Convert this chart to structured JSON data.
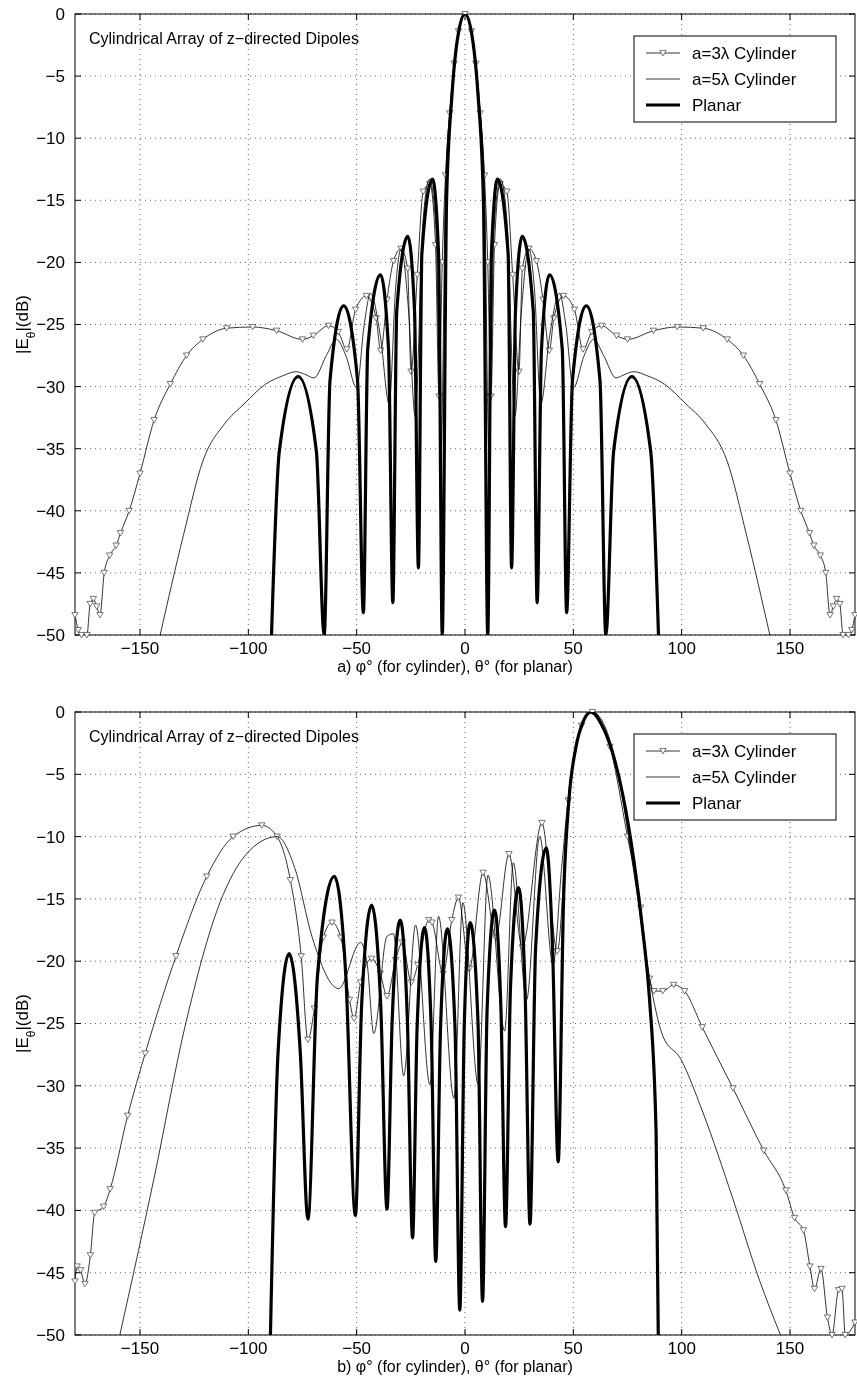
{
  "chart_data": [
    {
      "type": "line",
      "title": "Cylindrical Array of z−directed Dipoles",
      "xlabel": "a) φ° (for cylinder), θ° (for planar)",
      "ylabel": "|E$_{θ}$|(dB)",
      "xlim": [
        -180,
        180
      ],
      "ylim": [
        -50,
        0
      ],
      "xticks": [
        -150,
        -100,
        -50,
        0,
        50,
        100,
        150
      ],
      "yticks": [
        -50,
        -45,
        -40,
        -35,
        -30,
        -25,
        -20,
        -15,
        -10,
        -5,
        0
      ],
      "grid": true,
      "legend": "top right",
      "line_style": "solid",
      "series": [
        {
          "name": "a=3λ Cylinder",
          "color": "#000000",
          "marker": "triangle",
          "x": [
            -180,
            -178.5,
            -177,
            -174.5,
            -173,
            -171.5,
            -170,
            -168.5,
            -166.5,
            -164,
            -161,
            -159,
            -155,
            -150,
            -143.5,
            -136,
            -128.5,
            -121,
            -110,
            -98,
            -87,
            -75,
            -70,
            -63,
            -58.5,
            -54.5,
            -50.5,
            -45.5,
            -41,
            -38.9,
            -36,
            -33,
            -29.5,
            -26.5,
            -24.9,
            -22,
            -19.3,
            -16.2,
            -13.6,
            -12,
            -10.5,
            -9,
            -7,
            -5,
            -3,
            0,
            3,
            5,
            7,
            9,
            10.5,
            12,
            13.6,
            16.2,
            19.3,
            22,
            24.9,
            26.5,
            29.5,
            33,
            36,
            38.9,
            41,
            45.5,
            50.5,
            54.5,
            58.5,
            63,
            70,
            75,
            87,
            98,
            110,
            121,
            128.5,
            136,
            143.5,
            150,
            155,
            159,
            161,
            164,
            166.5,
            168.5,
            170,
            171.5,
            173,
            174.5,
            177,
            178.5,
            180
          ],
          "values": [
            -48.4,
            -49.6,
            -50,
            -50,
            -47.5,
            -47.1,
            -47.7,
            -48.4,
            -45,
            -43.6,
            -42.8,
            -41.8,
            -40,
            -37,
            -32.7,
            -29.8,
            -27.5,
            -26.2,
            -25.3,
            -25.2,
            -25.5,
            -26.2,
            -25.9,
            -25.1,
            -25.6,
            -27,
            -23.8,
            -22.7,
            -24.5,
            -27.1,
            -23,
            -19.9,
            -18.9,
            -20.5,
            -28.8,
            -21,
            -14.3,
            -13.7,
            -18.6,
            -30.8,
            -20,
            -13,
            -8,
            -4,
            -1.4,
            0,
            -1.4,
            -4,
            -8,
            -13,
            -20,
            -30.8,
            -18.6,
            -13.7,
            -14.3,
            -21,
            -28.8,
            -20.5,
            -18.9,
            -19.9,
            -23,
            -27.1,
            -24.5,
            -22.7,
            -23.8,
            -27,
            -25.6,
            -25.1,
            -25.9,
            -26.2,
            -25.5,
            -25.2,
            -25.3,
            -26.2,
            -27.5,
            -29.8,
            -32.7,
            -37,
            -40,
            -41.8,
            -42.8,
            -43.6,
            -45,
            -48.4,
            -47.7,
            -47.1,
            -47.5,
            -50,
            -50,
            -49.6,
            -48.4
          ]
        },
        {
          "name": "a=5λ Cylinder",
          "color": "#000000",
          "x": [
            -140.7,
            -130,
            -121,
            -111,
            -102,
            -92,
            -83.7,
            -78,
            -74,
            -69.7,
            -64,
            -59.4,
            -55,
            -50,
            -46.5,
            -43.6,
            -39,
            -35,
            -32,
            -29.5,
            -26,
            -23,
            -19.5,
            -16.4,
            -13.5,
            -11,
            -9,
            -6.5,
            -3,
            0,
            3,
            6.5,
            9,
            11,
            13.5,
            16.4,
            19.5,
            23,
            26,
            29.5,
            32,
            35,
            39,
            43.6,
            46.5,
            50,
            55,
            59.4,
            64,
            69.7,
            74,
            78,
            83.7,
            92,
            102,
            111,
            121,
            130,
            140.7
          ],
          "values": [
            -50,
            -42,
            -36,
            -33,
            -31.4,
            -29.8,
            -29.1,
            -28.8,
            -29,
            -29.3,
            -27.5,
            -26.2,
            -27.5,
            -30.1,
            -25,
            -22.5,
            -26,
            -31.4,
            -22,
            -18.9,
            -24,
            -32.4,
            -17,
            -13.3,
            -17,
            -35,
            -14,
            -6.8,
            -1.5,
            0,
            -1.5,
            -6.8,
            -14,
            -35,
            -17,
            -13.3,
            -17,
            -32.4,
            -24,
            -18.9,
            -22,
            -31.4,
            -26,
            -22.5,
            -25,
            -30.1,
            -27.5,
            -26.2,
            -27.5,
            -29.3,
            -29,
            -28.8,
            -29.1,
            -29.8,
            -31.4,
            -33,
            -36,
            -42,
            -50
          ]
        },
        {
          "name": "Planar",
          "color": "#000000",
          "x": [
            -89.3,
            -85.7,
            -77,
            -68.6,
            -65,
            -62.3,
            -56,
            -49.6,
            -46.9,
            -44.9,
            -39,
            -35.3,
            -33.3,
            -31.5,
            -26.4,
            -23.3,
            -21.5,
            -19.9,
            -15,
            -12.2,
            -10.5,
            -8.5,
            -6,
            -3,
            0,
            3,
            6,
            8.5,
            10.5,
            12.2,
            15,
            19.9,
            21.5,
            23.3,
            26.4,
            31.5,
            33.3,
            35.3,
            39,
            44.9,
            46.9,
            49.6,
            56,
            62.3,
            65,
            68.6,
            77,
            85.7,
            89.3
          ],
          "values": [
            -50,
            -35.2,
            -29.2,
            -35.2,
            -50,
            -29.5,
            -23.5,
            -29.5,
            -48.2,
            -27,
            -21,
            -27,
            -47.4,
            -23.9,
            -17.9,
            -23.9,
            -44.6,
            -19.3,
            -13.3,
            -19.3,
            -50,
            -15,
            -6.5,
            -1.5,
            0,
            -1.5,
            -6.5,
            -15,
            -50,
            -19.3,
            -13.3,
            -19.3,
            -44.6,
            -23.9,
            -17.9,
            -23.9,
            -47.4,
            -27,
            -21,
            -27,
            -48.2,
            -29.5,
            -23.5,
            -29.5,
            -50,
            -35.2,
            -29.2,
            -35.2,
            -50
          ]
        }
      ]
    },
    {
      "type": "line",
      "title": "Cylindrical Array of z−directed Dipoles",
      "xlabel": "b) φ° (for cylinder), θ° (for planar)",
      "ylabel": "|E$_{θ}$|(dB)",
      "xlim": [
        -180,
        180
      ],
      "ylim": [
        -50,
        0
      ],
      "xticks": [
        -150,
        -100,
        -50,
        0,
        50,
        100,
        150
      ],
      "yticks": [
        -50,
        -45,
        -40,
        -35,
        -30,
        -25,
        -20,
        -15,
        -10,
        -5,
        0
      ],
      "grid": true,
      "legend": "top right",
      "line_style": "solid",
      "series": [
        {
          "name": "a=3λ Cylinder",
          "color": "#000000",
          "marker": "triangle",
          "x": [
            -180,
            -179,
            -177.4,
            -175.4,
            -172.9,
            -170.9,
            -166.8,
            -163.8,
            -155.7,
            -147.6,
            -133.4,
            -119.2,
            -107,
            -93.8,
            -86.7,
            -80.6,
            -75.6,
            -72.5,
            -69.5,
            -65.4,
            -61.4,
            -57.3,
            -53.3,
            -51.2,
            -48.2,
            -43.1,
            -39.1,
            -36,
            -32,
            -28.9,
            -24.8,
            -21.8,
            -16.7,
            -15.2,
            -10.1,
            -6.1,
            -3,
            2,
            8.3,
            14.2,
            20.3,
            26.4,
            35.5,
            42.6,
            47.7,
            53.8,
            58.8,
            66.9,
            75,
            81.1,
            85.2,
            87.2,
            91.3,
            96.3,
            101.4,
            109.5,
            123.7,
            137.9,
            148.1,
            152.1,
            156.2,
            159.2,
            161.3,
            164.3,
            167.3,
            169.4,
            172.4,
            174,
            175.5,
            180
          ],
          "values": [
            -45.7,
            -44.5,
            -44.8,
            -45.9,
            -43.6,
            -40.2,
            -39.7,
            -38.3,
            -32.4,
            -27.4,
            -19.6,
            -13.2,
            -10,
            -9.1,
            -10,
            -13.5,
            -19.6,
            -26.3,
            -23.8,
            -18.1,
            -16.9,
            -18.1,
            -23.1,
            -24.6,
            -21.7,
            -19.8,
            -21,
            -22.8,
            -19.9,
            -18.5,
            -21.7,
            -20.3,
            -16.7,
            -16.9,
            -21,
            -16.7,
            -14.9,
            -20.6,
            -12.9,
            -18.1,
            -11.4,
            -18.9,
            -8.9,
            -19.2,
            -7.1,
            -1.1,
            0,
            -2.8,
            -10,
            -15.7,
            -21.4,
            -22.4,
            -22.4,
            -21.9,
            -22.4,
            -25.3,
            -30.2,
            -35.2,
            -38.4,
            -40.6,
            -41.6,
            -44.5,
            -46.3,
            -44.7,
            -48.6,
            -50,
            -46.4,
            -46.3,
            -50,
            -49
          ]
        },
        {
          "name": "a=5λ Cylinder",
          "color": "#000000",
          "x": [
            -159.3,
            -143.5,
            -129.3,
            -113.1,
            -100.9,
            -86.7,
            -78.6,
            -70.5,
            -58.3,
            -48.2,
            -45.1,
            -42.1,
            -36,
            -33,
            -28.3,
            -22.8,
            -16.2,
            -12.2,
            -5.1,
            -1,
            6.1,
            10.6,
            18.3,
            22.3,
            28.4,
            34.5,
            40.6,
            44.6,
            48.7,
            56.8,
            58.8,
            69,
            79.1,
            85.2,
            91.3,
            99.4,
            109.5,
            123.7,
            135.9,
            145.6
          ],
          "values": [
            -50,
            -37.4,
            -25.3,
            -15.3,
            -11.4,
            -10,
            -12.5,
            -18.1,
            -22.2,
            -18.5,
            -20.3,
            -25.8,
            -18,
            -17.8,
            -29.2,
            -17.1,
            -29.9,
            -16.4,
            -31,
            -15.3,
            -29.9,
            -13.1,
            -25.6,
            -12.1,
            -23.1,
            -10,
            -20.3,
            -12.5,
            -5.3,
            -0.2,
            0,
            -3.6,
            -14.2,
            -21.4,
            -26,
            -27.8,
            -32,
            -39.1,
            -45.6,
            -50
          ]
        },
        {
          "name": "Planar",
          "color": "#000000",
          "x": [
            -89.8,
            -86.3,
            -81.2,
            -76,
            -72.5,
            -68.1,
            -60.3,
            -55,
            -50.6,
            -47.7,
            -43.1,
            -38.9,
            -36,
            -33.6,
            -29.9,
            -26.6,
            -24.2,
            -22.1,
            -18.7,
            -15.6,
            -13.5,
            -11.3,
            -8.1,
            -4.6,
            -2.4,
            -0.3,
            2.4,
            6,
            8.1,
            10.2,
            13.6,
            16.6,
            18.7,
            21,
            24.7,
            27.7,
            30,
            32.6,
            37.5,
            40.4,
            43,
            45.5,
            48,
            51,
            54.5,
            58.2,
            63,
            68,
            73,
            78,
            82,
            85.2,
            88.2,
            89.2
          ],
          "values": [
            -50,
            -27.4,
            -19.4,
            -27.4,
            -40.7,
            -21.2,
            -13.2,
            -21.2,
            -40.4,
            -23.5,
            -15.5,
            -23.5,
            -39.9,
            -24.7,
            -16.7,
            -24.7,
            -42.2,
            -25.3,
            -17.3,
            -25.3,
            -44.1,
            -25.4,
            -17.4,
            -25.4,
            -48,
            -24.9,
            -16.9,
            -24.9,
            -47.3,
            -23.9,
            -15.9,
            -23.9,
            -41.3,
            -22.1,
            -14.1,
            -22.1,
            -41.1,
            -18.9,
            -10.9,
            -18.9,
            -36.1,
            -15,
            -7,
            -3,
            -0.8,
            0,
            -1,
            -3.2,
            -6.8,
            -12,
            -17.5,
            -23.1,
            -33.8,
            -50
          ]
        }
      ]
    }
  ]
}
